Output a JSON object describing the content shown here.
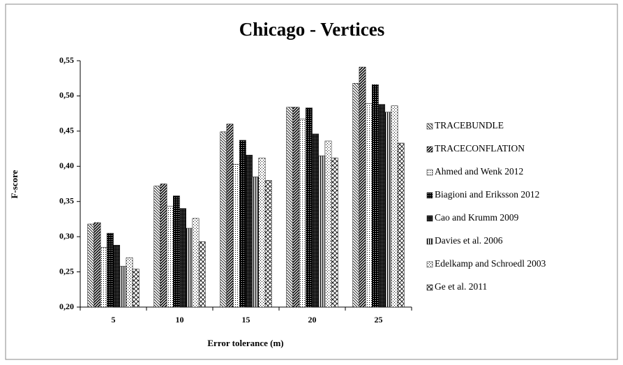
{
  "chart_data": {
    "type": "bar",
    "title": "Chicago - Vertices",
    "x_label": "Error tolerance (m)",
    "y_label": "F-score",
    "categories": [
      "5",
      "10",
      "15",
      "20",
      "25"
    ],
    "ylim": [
      0.2,
      0.55
    ],
    "yticks": [
      {
        "value": 0.2,
        "label": "0,20"
      },
      {
        "value": 0.25,
        "label": "0,25"
      },
      {
        "value": 0.3,
        "label": "0,30"
      },
      {
        "value": 0.35,
        "label": "0,35"
      },
      {
        "value": 0.4,
        "label": "0,40"
      },
      {
        "value": 0.45,
        "label": "0,45"
      },
      {
        "value": 0.5,
        "label": "0,50"
      },
      {
        "value": 0.55,
        "label": "0,55"
      }
    ],
    "grid": false,
    "legend": "right",
    "series": [
      {
        "name": "TRACEBUNDLE",
        "color": "#000000",
        "pattern": "back-diagonal",
        "values": [
          0.318,
          0.372,
          0.449,
          0.484,
          0.518
        ]
      },
      {
        "name": "TRACECONFLATION",
        "color": "#000000",
        "pattern": "forward-diagonal",
        "values": [
          0.32,
          0.375,
          0.46,
          0.484,
          0.541
        ]
      },
      {
        "name": "Ahmed and Wenk 2012",
        "color": "#000000",
        "pattern": "dots",
        "values": [
          0.285,
          0.343,
          0.403,
          0.467,
          0.489
        ]
      },
      {
        "name": "Biagioni and Eriksson 2012",
        "color": "#000000",
        "pattern": "dense-cross",
        "values": [
          0.305,
          0.358,
          0.437,
          0.483,
          0.516
        ]
      },
      {
        "name": "Cao and Krumm 2009",
        "color": "#000000",
        "pattern": "checker",
        "values": [
          0.288,
          0.34,
          0.416,
          0.446,
          0.488
        ]
      },
      {
        "name": "Davies et al. 2006",
        "color": "#000000",
        "pattern": "vertical",
        "values": [
          0.258,
          0.312,
          0.385,
          0.415,
          0.477
        ]
      },
      {
        "name": "Edelkamp and Schroedl 2003",
        "color": "#000000",
        "pattern": "sparse-dots",
        "values": [
          0.27,
          0.326,
          0.412,
          0.436,
          0.486
        ]
      },
      {
        "name": "Ge et al. 2011",
        "color": "#000000",
        "pattern": "diagonal-cross",
        "values": [
          0.254,
          0.293,
          0.38,
          0.412,
          0.433
        ]
      }
    ]
  }
}
